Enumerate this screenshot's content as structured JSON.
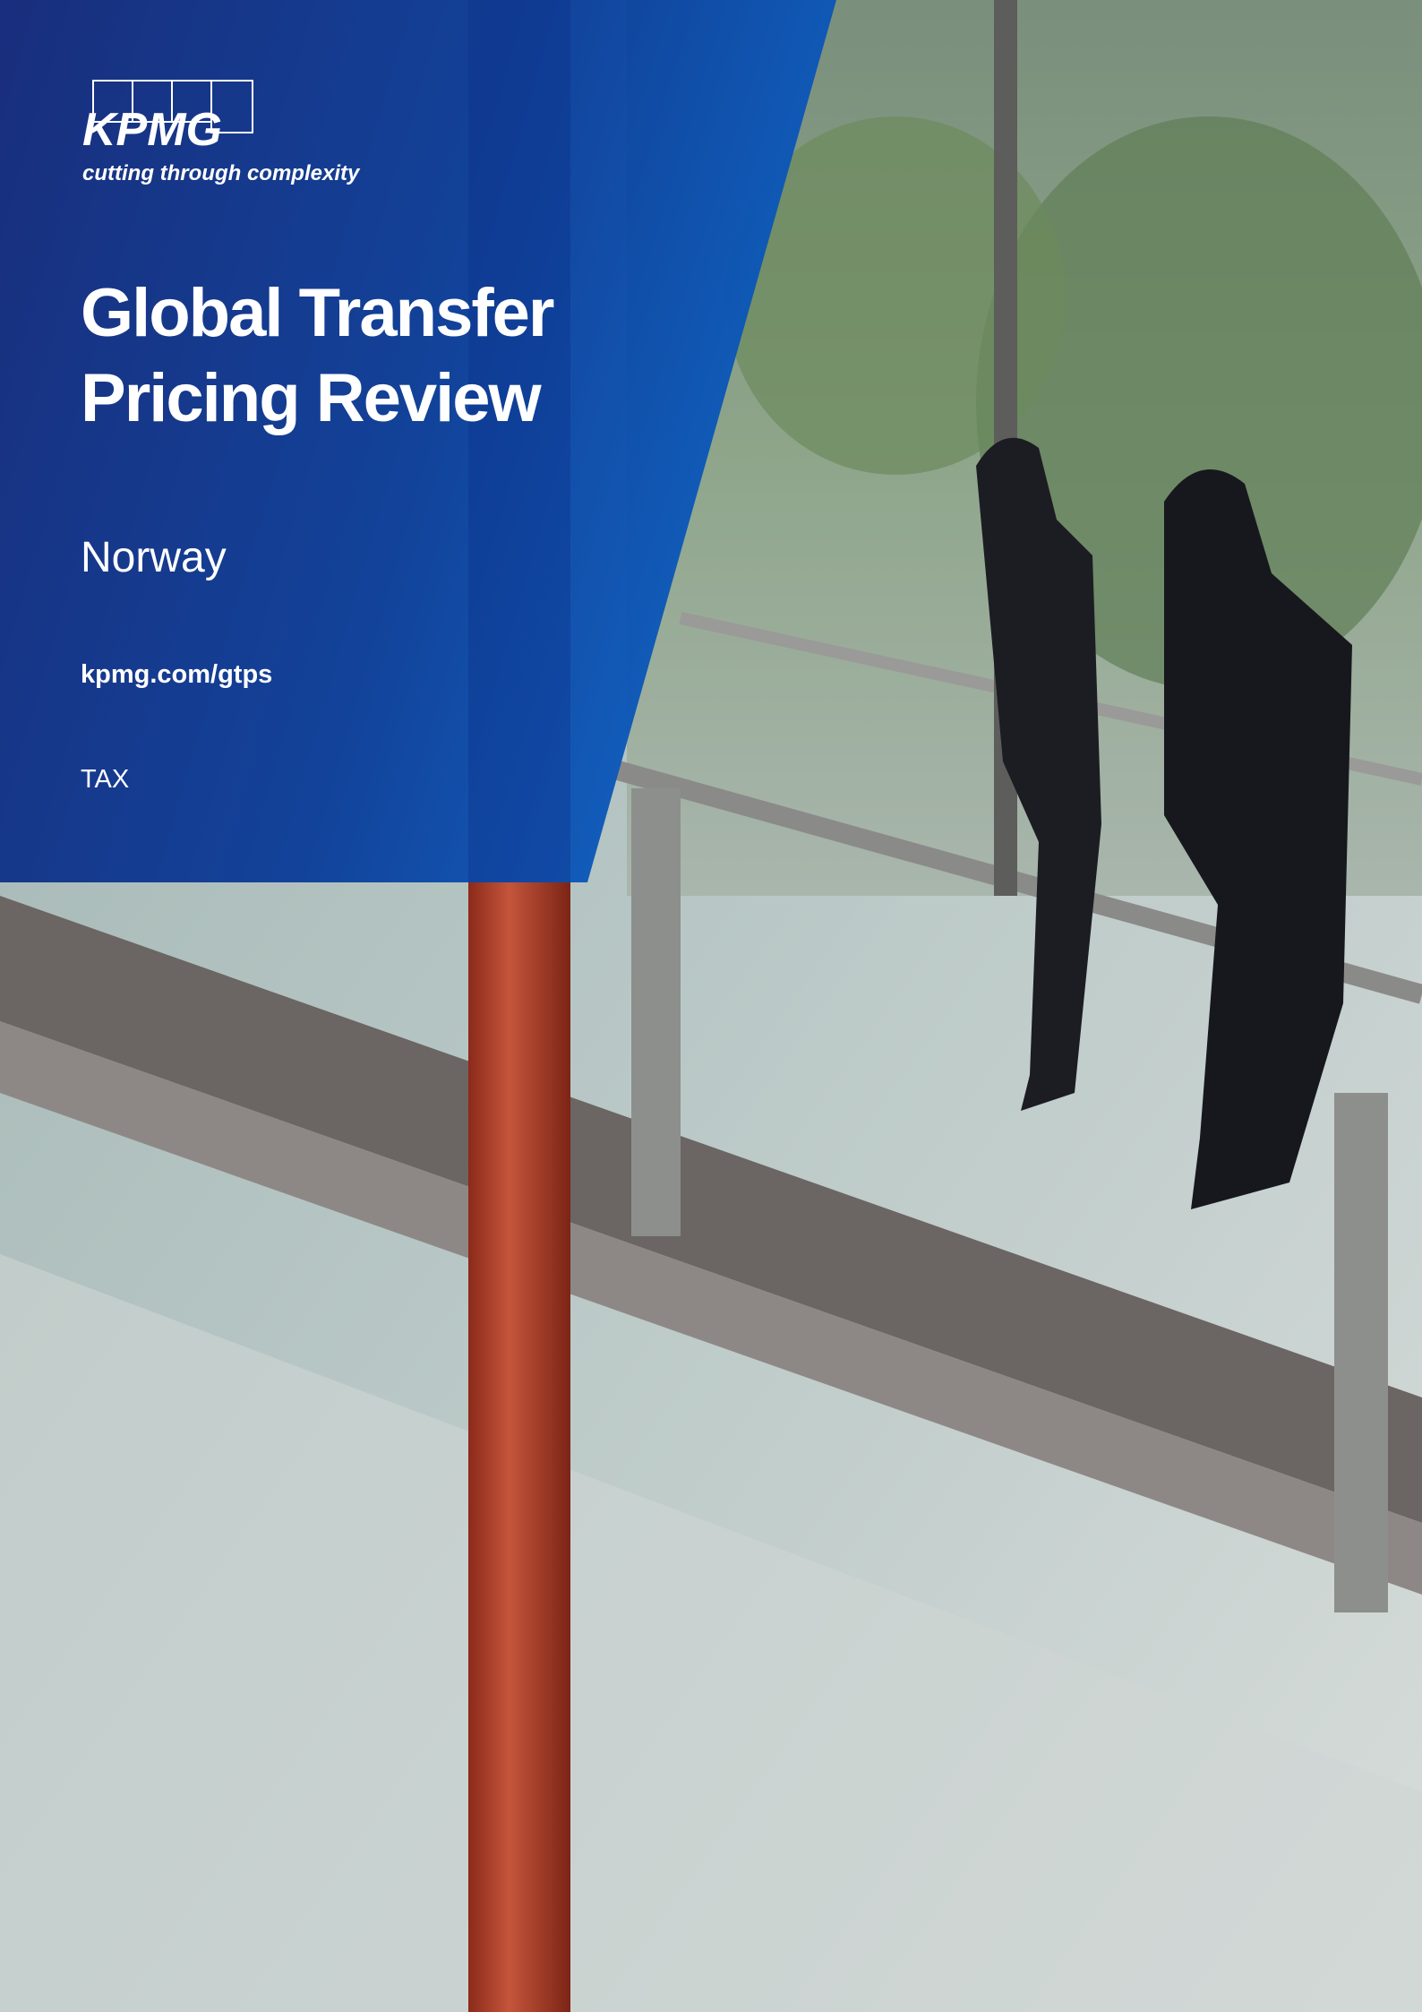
{
  "logo": {
    "name": "KPMG",
    "tagline": "cutting through complexity"
  },
  "title": [
    "Global Transfer",
    "Pricing Review"
  ],
  "country": "Norway",
  "url": "kpmg.com/gtps",
  "category": "TAX"
}
